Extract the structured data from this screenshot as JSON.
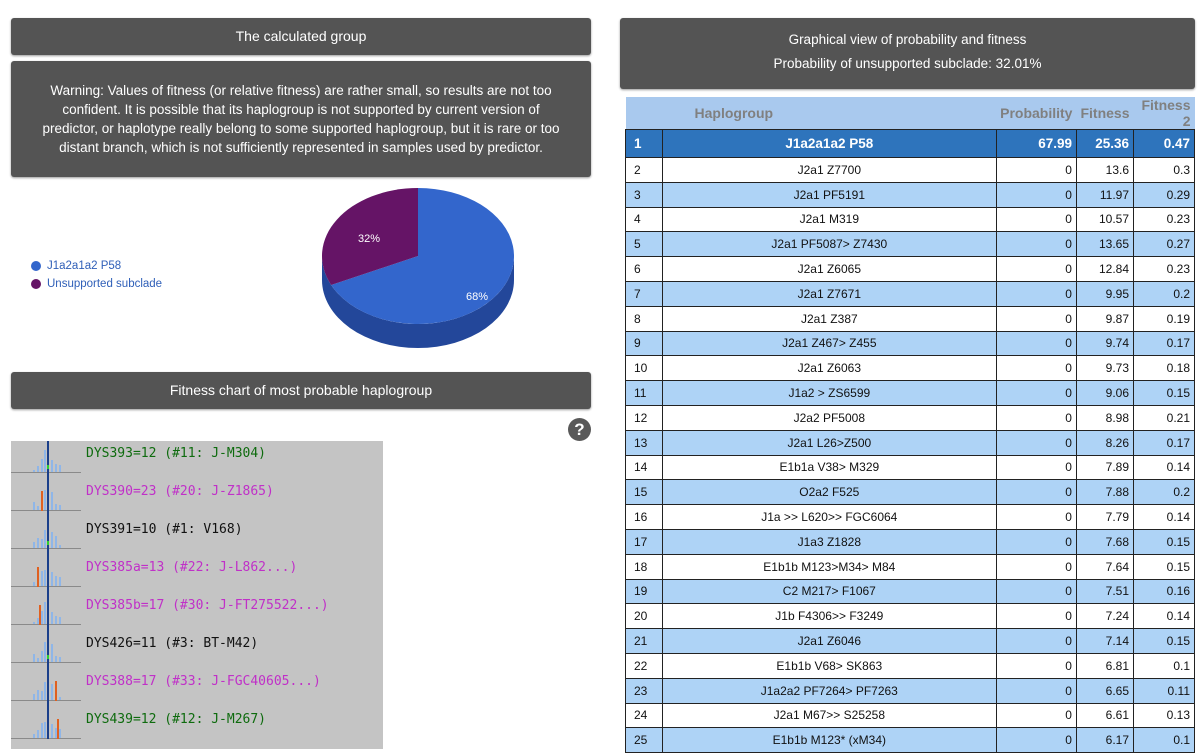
{
  "calculated_group": {
    "title": "The calculated group",
    "warning": "Warning: Values of fitness (or relative fitness) are rather small, so results are not too confident. It is possible that its haplogroup is not supported by current version of predictor, or haplotype really belong to some supported haplogroup, but it is rare or too distant branch, which is not sufficiently represented in samples used by predictor."
  },
  "pie": {
    "legend": [
      {
        "label": "J1a2a1a2 P58",
        "color": "#3366cc"
      },
      {
        "label": "Unsupported subclade",
        "color": "#651466"
      }
    ],
    "slice_labels": {
      "main": "68%",
      "unsupported": "32%"
    }
  },
  "chart_data": {
    "type": "pie",
    "categories": [
      "J1a2a1a2 P58",
      "Unsupported subclade"
    ],
    "values": [
      68,
      32
    ],
    "colors": [
      "#3366cc",
      "#651466"
    ],
    "legend_position": "left"
  },
  "fitness_chart": {
    "title": "Fitness chart of most probable haplogroup",
    "help_icon": "question-circle-icon",
    "rows": [
      {
        "label": "DYS393=12 (#11: J-M304)",
        "color": "#0e6b0e"
      },
      {
        "label": "DYS390=23 (#20: J-Z1865)",
        "color": "#c030c8"
      },
      {
        "label": "DYS391=10 (#1: V168)",
        "color": "#111111"
      },
      {
        "label": "DYS385a=13 (#22: J-L862...)",
        "color": "#c030c8"
      },
      {
        "label": "DYS385b=17 (#30: J-FT275522...)",
        "color": "#c030c8"
      },
      {
        "label": "DYS426=11 (#3: BT-M42)",
        "color": "#111111"
      },
      {
        "label": "DYS388=17 (#33: J-FGC40605...)",
        "color": "#c030c8"
      },
      {
        "label": "DYS439=12 (#12: J-M267)",
        "color": "#0e6b0e"
      }
    ]
  },
  "graphical_view": {
    "title": "Graphical view of probability and fitness",
    "subtitle": "Probability of unsupported subclade: 32.01%"
  },
  "table": {
    "headers": [
      "",
      "Haplogroup",
      "Probability",
      "Fitness",
      "Fitness 2"
    ],
    "rows": [
      [
        "1",
        "J1a2a1a2 P58",
        "67.99",
        "25.36",
        "0.47"
      ],
      [
        "2",
        "J2a1 Z7700",
        "0",
        "13.6",
        "0.3"
      ],
      [
        "3",
        "J2a1 PF5191",
        "0",
        "11.97",
        "0.29"
      ],
      [
        "4",
        "J2a1 M319",
        "0",
        "10.57",
        "0.23"
      ],
      [
        "5",
        "J2a1 PF5087> Z7430",
        "0",
        "13.65",
        "0.27"
      ],
      [
        "6",
        "J2a1 Z6065",
        "0",
        "12.84",
        "0.23"
      ],
      [
        "7",
        "J2a1 Z7671",
        "0",
        "9.95",
        "0.2"
      ],
      [
        "8",
        "J2a1 Z387",
        "0",
        "9.87",
        "0.19"
      ],
      [
        "9",
        "J2a1 Z467> Z455",
        "0",
        "9.74",
        "0.17"
      ],
      [
        "10",
        "J2a1 Z6063",
        "0",
        "9.73",
        "0.18"
      ],
      [
        "11",
        "J1a2 > ZS6599",
        "0",
        "9.06",
        "0.15"
      ],
      [
        "12",
        "J2a2 PF5008",
        "0",
        "8.98",
        "0.21"
      ],
      [
        "13",
        "J2a1 L26>Z500",
        "0",
        "8.26",
        "0.17"
      ],
      [
        "14",
        "E1b1a V38> M329",
        "0",
        "7.89",
        "0.14"
      ],
      [
        "15",
        "O2a2 F525",
        "0",
        "7.88",
        "0.2"
      ],
      [
        "16",
        "J1a >> L620>> FGC6064",
        "0",
        "7.79",
        "0.14"
      ],
      [
        "17",
        "J1a3 Z1828",
        "0",
        "7.68",
        "0.15"
      ],
      [
        "18",
        "E1b1b M123>M34> M84",
        "0",
        "7.64",
        "0.15"
      ],
      [
        "19",
        "C2 M217> F1067",
        "0",
        "7.51",
        "0.16"
      ],
      [
        "20",
        "J1b F4306>> F3249",
        "0",
        "7.24",
        "0.14"
      ],
      [
        "21",
        "J2a1 Z6046",
        "0",
        "7.14",
        "0.15"
      ],
      [
        "22",
        "E1b1b V68> SK863",
        "0",
        "6.81",
        "0.1"
      ],
      [
        "23",
        "J1a2a2 PF7264> PF7263",
        "0",
        "6.65",
        "0.11"
      ],
      [
        "24",
        "J2a1 M67>> S25258",
        "0",
        "6.61",
        "0.13"
      ],
      [
        "25",
        "E1b1b M123* (xM34)",
        "0",
        "6.17",
        "0.1"
      ]
    ]
  }
}
